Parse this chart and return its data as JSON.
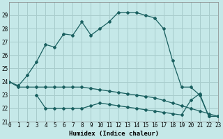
{
  "xlabel": "Humidex (Indice chaleur)",
  "bg_color": "#c5e8e8",
  "grid_color": "#a8cccc",
  "line_color": "#1a6060",
  "line1_x": [
    0,
    1,
    2,
    3,
    4,
    5,
    6,
    7,
    8,
    9,
    10,
    11,
    12,
    13,
    14,
    15,
    16,
    17,
    18,
    19,
    20,
    21,
    22,
    23
  ],
  "line1_y": [
    24.0,
    23.7,
    24.5,
    25.5,
    26.8,
    26.6,
    27.6,
    27.5,
    28.5,
    27.5,
    28.0,
    28.5,
    29.2,
    29.2,
    29.2,
    29.0,
    28.8,
    28.0,
    25.6,
    23.6,
    23.6,
    23.0,
    21.4,
    21.4
  ],
  "line2_x": [
    0,
    1,
    2,
    3,
    4,
    5,
    6,
    7,
    8,
    9,
    10,
    11,
    12,
    13,
    14,
    15,
    16,
    17,
    18,
    19,
    20,
    21,
    22,
    23
  ],
  "line2_y": [
    24.0,
    23.6,
    23.6,
    23.6,
    23.6,
    23.6,
    23.6,
    23.6,
    23.6,
    23.5,
    23.4,
    23.3,
    23.2,
    23.1,
    23.0,
    22.9,
    22.8,
    22.6,
    22.4,
    22.2,
    22.0,
    21.8,
    21.6,
    21.4
  ],
  "line3_x": [
    3,
    4,
    5,
    6,
    7,
    8,
    9,
    10,
    11,
    12,
    13,
    14,
    15,
    16,
    17,
    18,
    19,
    20,
    21,
    22,
    23
  ],
  "line3_y": [
    23.0,
    22.0,
    22.0,
    22.0,
    22.0,
    22.0,
    22.2,
    22.4,
    22.3,
    22.2,
    22.1,
    22.0,
    21.9,
    21.8,
    21.7,
    21.6,
    21.5,
    22.6,
    23.1,
    21.4,
    21.4
  ],
  "xlim": [
    0,
    23
  ],
  "ylim": [
    21,
    30
  ],
  "yticks": [
    21,
    22,
    23,
    24,
    25,
    26,
    27,
    28,
    29
  ],
  "xticks": [
    0,
    1,
    2,
    3,
    4,
    5,
    6,
    7,
    8,
    9,
    10,
    11,
    12,
    13,
    14,
    15,
    16,
    17,
    18,
    19,
    20,
    21,
    22,
    23
  ]
}
